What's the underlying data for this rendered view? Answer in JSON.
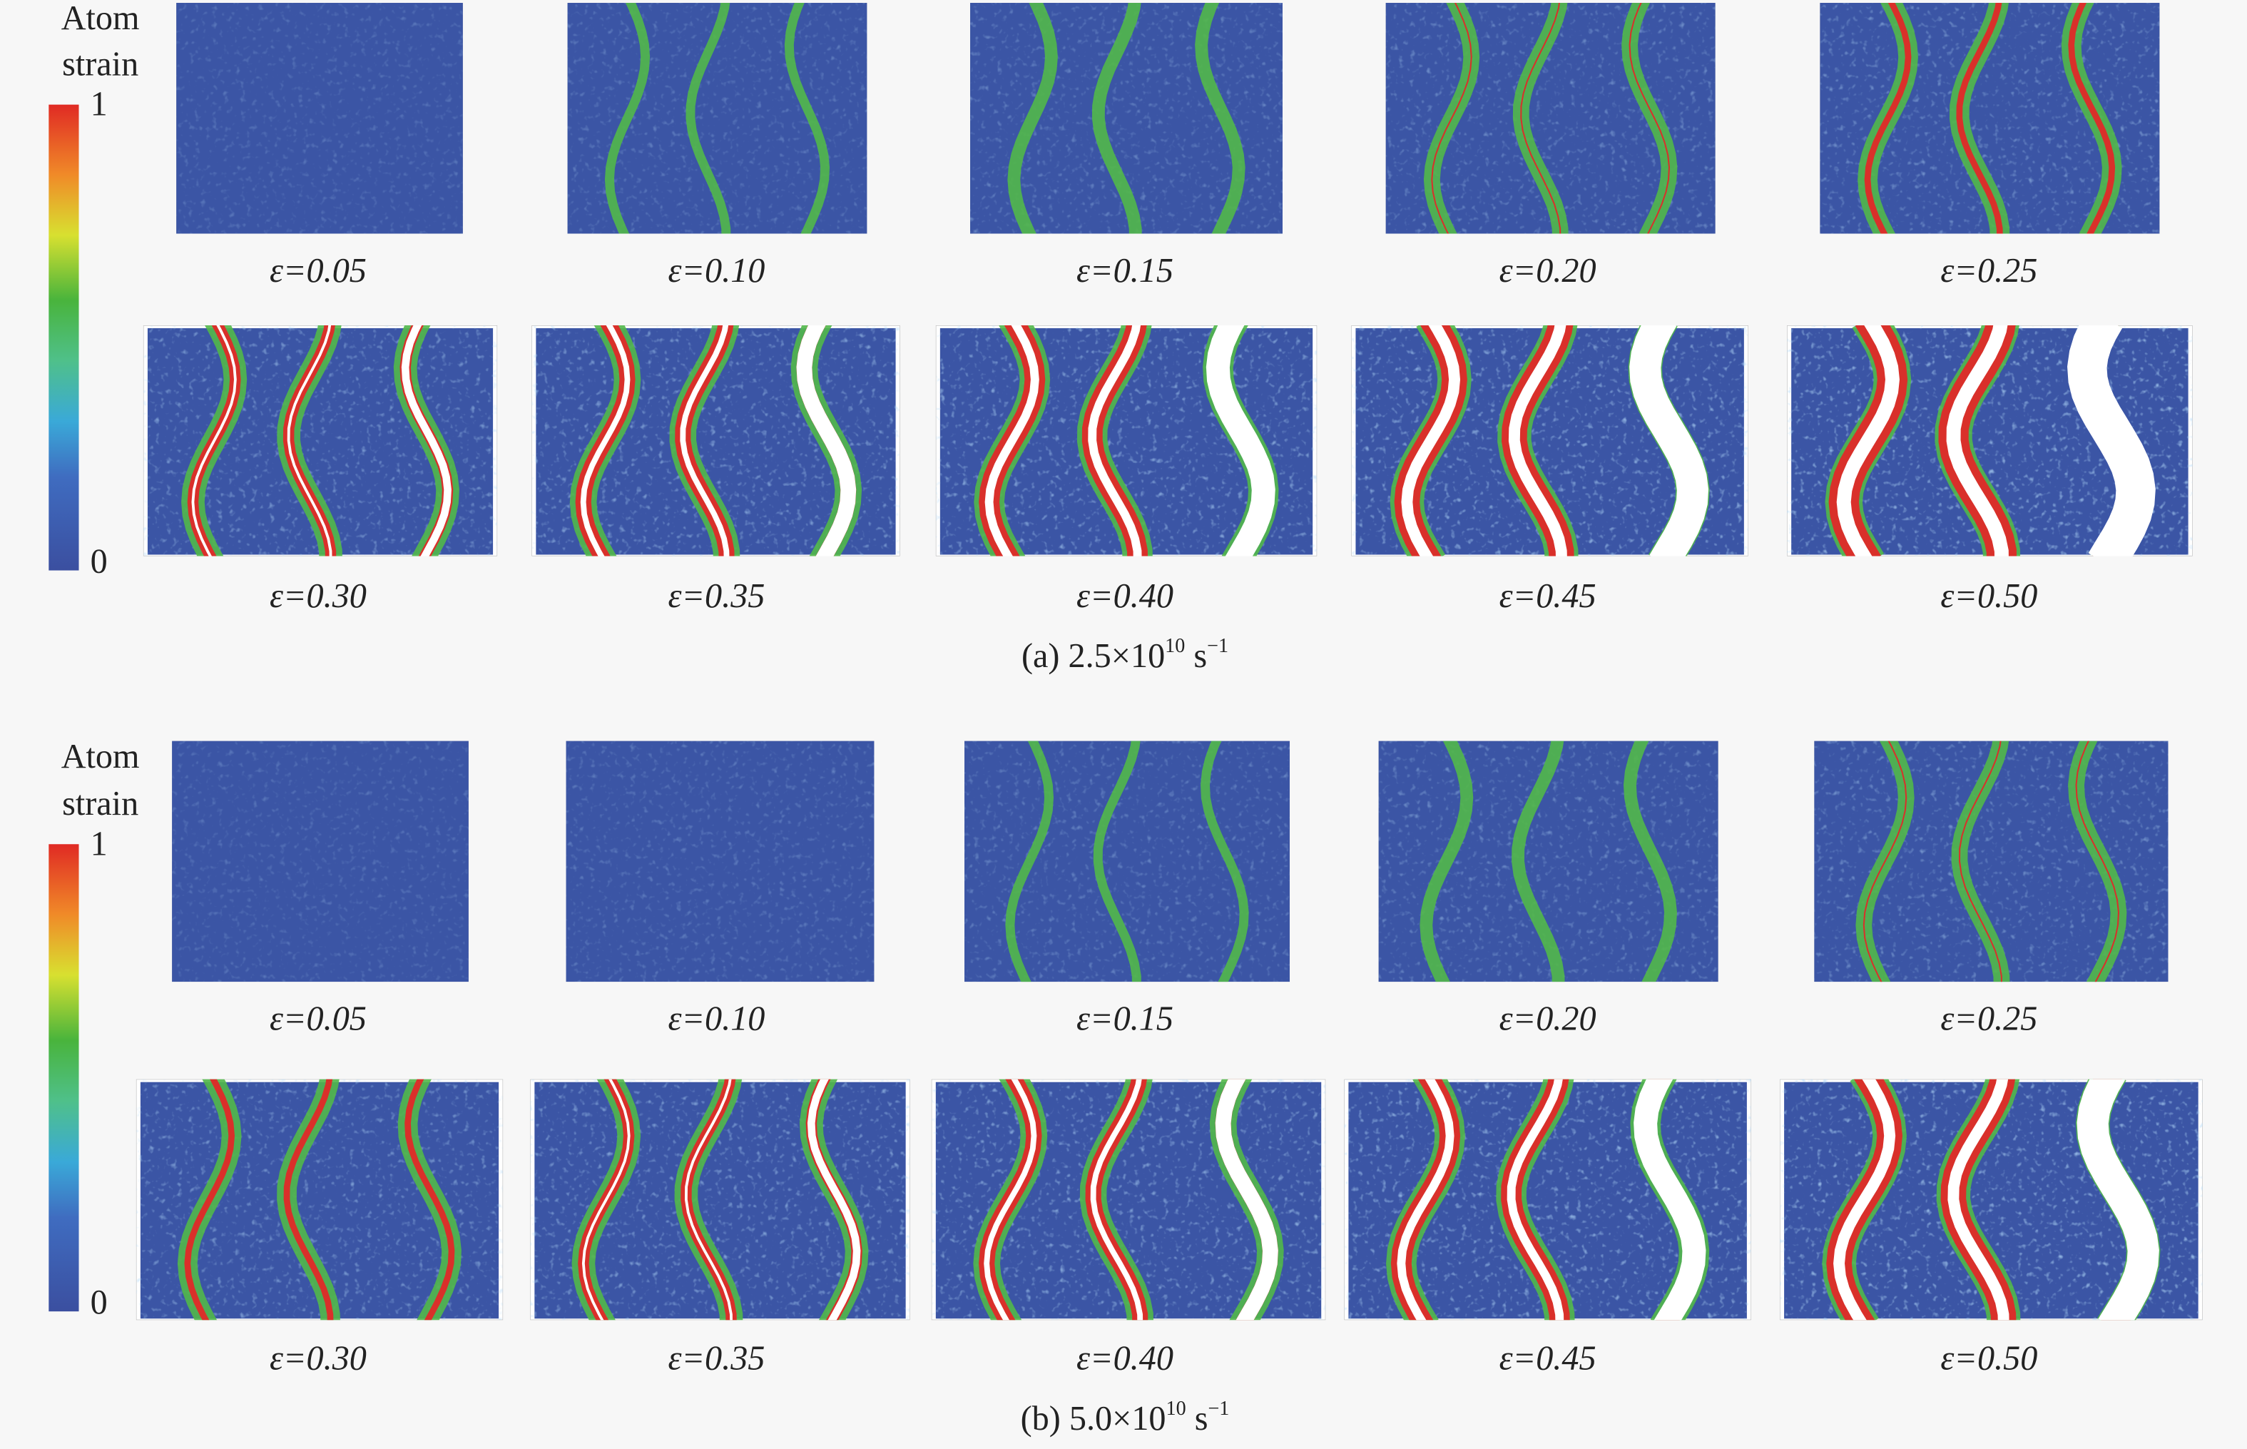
{
  "figure": {
    "panels": [
      {
        "colorbar": {
          "title": [
            "Atom",
            "strain"
          ],
          "range": [
            0,
            1
          ],
          "ticks": [
            0,
            1
          ]
        },
        "strains": [
          "ε=0.05",
          "ε=0.10",
          "ε=0.15",
          "ε=0.20",
          "ε=0.25",
          "ε=0.30",
          "ε=0.35",
          "ε=0.40",
          "ε=0.45",
          "ε=0.50"
        ],
        "caption": {
          "label": "(a) 2.5×10",
          "exponent": "10",
          "unit": "s",
          "unit_exponent": "−1"
        }
      },
      {
        "colorbar": {
          "title": [
            "Atom",
            "strain"
          ],
          "range": [
            0,
            1
          ],
          "ticks": [
            0,
            1
          ]
        },
        "strains": [
          "ε=0.05",
          "ε=0.10",
          "ε=0.15",
          "ε=0.20",
          "ε=0.25",
          "ε=0.30",
          "ε=0.35",
          "ε=0.40",
          "ε=0.45",
          "ε=0.50"
        ],
        "caption": {
          "label": "(b) 5.0×10",
          "exponent": "10",
          "unit": "s",
          "unit_exponent": "−1"
        }
      }
    ]
  }
}
